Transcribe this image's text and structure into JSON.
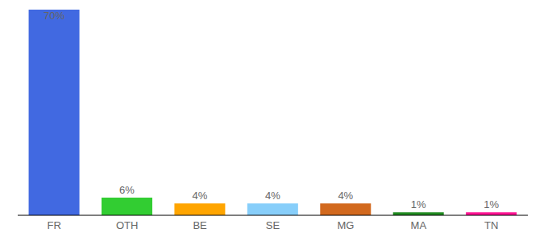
{
  "chart_data": {
    "type": "bar",
    "categories": [
      "FR",
      "OTH",
      "BE",
      "SE",
      "MG",
      "MA",
      "TN"
    ],
    "values": [
      70,
      6,
      4,
      4,
      4,
      1,
      1
    ],
    "value_labels": [
      "70%",
      "6%",
      "4%",
      "4%",
      "4%",
      "1%",
      "1%"
    ],
    "colors": [
      "#4169e1",
      "#32cd32",
      "#ffa500",
      "#87cefa",
      "#d2691e",
      "#228b22",
      "#ff1493"
    ],
    "ylim": [
      0,
      70
    ],
    "data_labels": true,
    "tick_labels": "x",
    "grid": false
  }
}
